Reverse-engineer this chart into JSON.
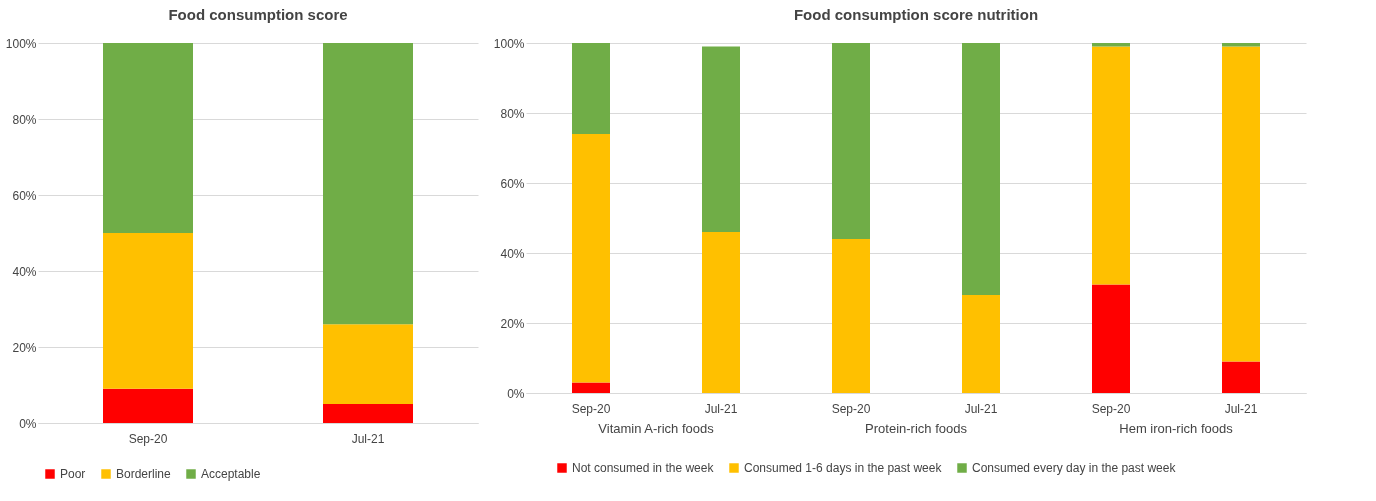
{
  "chart_data": [
    {
      "type": "bar",
      "title": "Food consumption score",
      "stacked": true,
      "categories": [
        "Sep-20",
        "Jul-21"
      ],
      "series": [
        {
          "name": "Poor",
          "color": "#ff0000",
          "values": [
            9,
            5
          ]
        },
        {
          "name": "Borderline",
          "color": "#ffc000",
          "values": [
            41,
            21
          ]
        },
        {
          "name": "Acceptable",
          "color": "#70ad47",
          "values": [
            50,
            74
          ]
        }
      ],
      "ylim": [
        0,
        100
      ],
      "yticks": [
        {
          "value": 0,
          "label": "0%"
        },
        {
          "value": 20,
          "label": "20%"
        },
        {
          "value": 40,
          "label": "40%"
        },
        {
          "value": 60,
          "label": "60%"
        },
        {
          "value": 80,
          "label": "80%"
        },
        {
          "value": 100,
          "label": "100%"
        }
      ],
      "grid": "y",
      "legend": "bottom"
    },
    {
      "type": "bar",
      "title": "Food consumption score nutrition",
      "stacked": true,
      "categories": [
        "Sep-20",
        "Jul-21",
        "Sep-20",
        "Jul-21",
        "Sep-20",
        "Jul-21"
      ],
      "series": [
        {
          "name": "Not consumed in the week",
          "color": "#ff0000",
          "values": [
            3,
            0,
            0,
            0,
            31,
            9
          ]
        },
        {
          "name": "Consumed 1-6 days in the past week",
          "color": "#ffc000",
          "values": [
            71,
            46,
            44,
            28,
            68,
            90
          ]
        },
        {
          "name": "Consumed every day in the past week",
          "color": "#70ad47",
          "values": [
            26,
            53,
            56,
            72,
            1,
            1
          ]
        }
      ],
      "annotations": [
        "Vitamin A-rich foods",
        "Protein-rich foods",
        "Hem iron-rich foods"
      ],
      "ylim": [
        0,
        100
      ],
      "yticks": [
        {
          "value": 0,
          "label": "0%"
        },
        {
          "value": 20,
          "label": "20%"
        },
        {
          "value": 40,
          "label": "40%"
        },
        {
          "value": 60,
          "label": "60%"
        },
        {
          "value": 80,
          "label": "80%"
        },
        {
          "value": 100,
          "label": "100%"
        }
      ],
      "grid": "y",
      "legend": "bottom"
    }
  ]
}
